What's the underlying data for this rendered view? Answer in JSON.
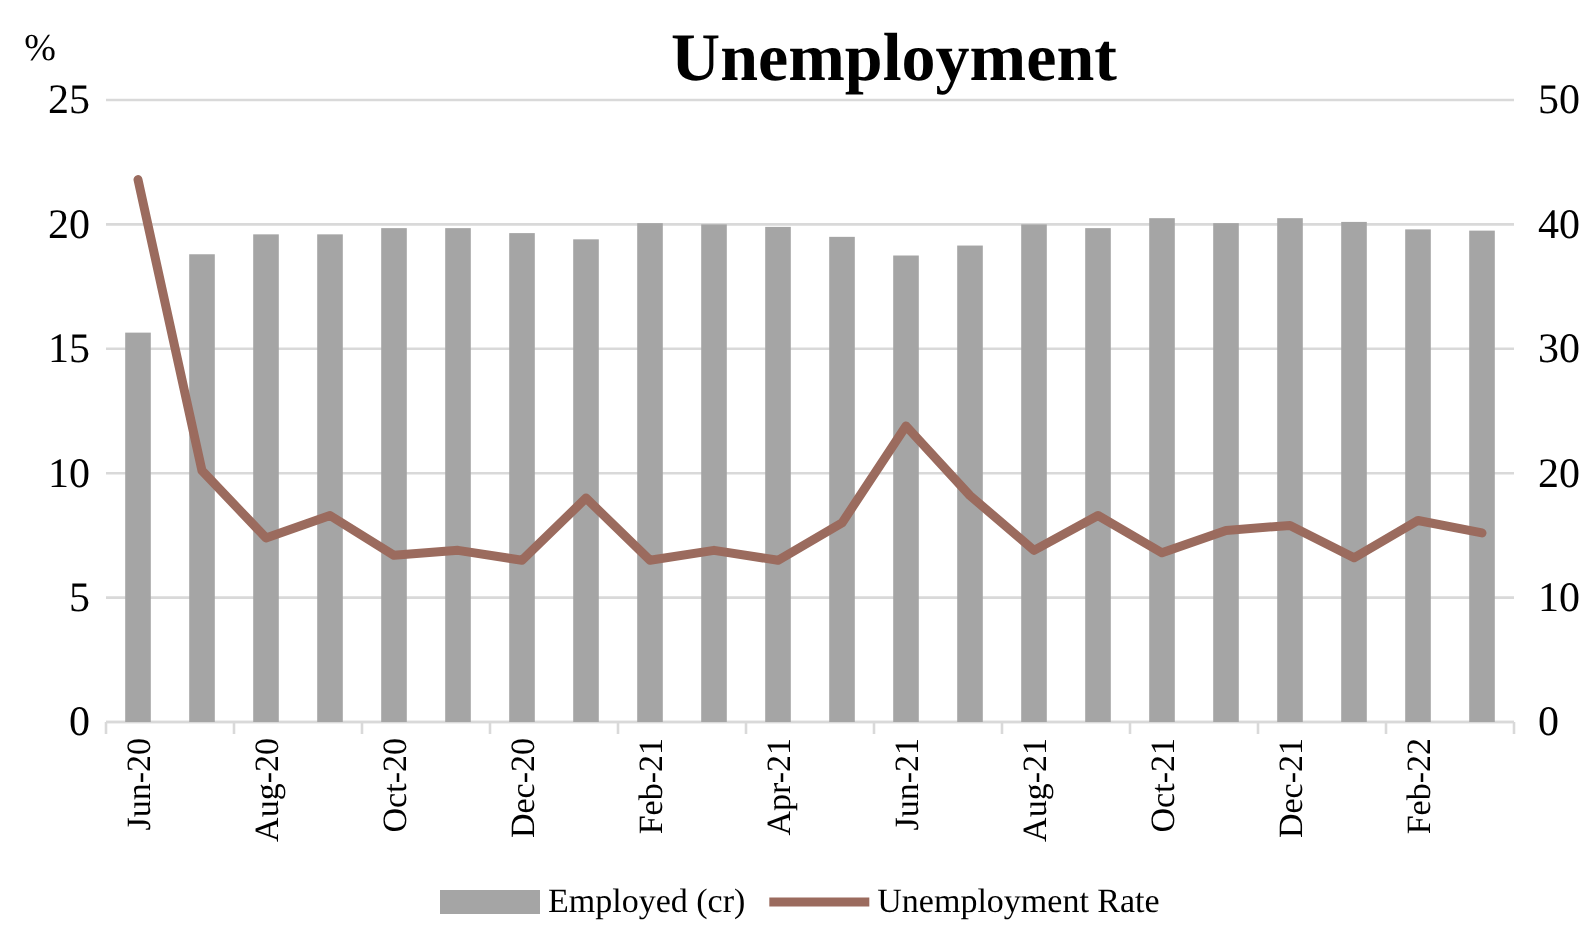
{
  "chart_data": {
    "type": "bar",
    "title": "Unemployment",
    "ylabel": "%",
    "categories": [
      "Jun-20",
      null,
      "Aug-20",
      null,
      "Oct-20",
      null,
      "Dec-20",
      null,
      "Feb-21",
      null,
      "Apr-21",
      null,
      "Jun-21",
      null,
      "Aug-21",
      null,
      "Oct-21",
      null,
      "Dec-21",
      null,
      "Feb-22",
      null
    ],
    "series": [
      {
        "name": "Employed (cr)",
        "axis": "y2",
        "color": "#a5a5a5",
        "values": [
          31.3,
          37.6,
          39.2,
          39.2,
          39.7,
          39.7,
          39.3,
          38.8,
          40.1,
          40.0,
          39.8,
          39.0,
          37.5,
          38.3,
          40.0,
          39.7,
          40.5,
          40.1,
          40.5,
          40.2,
          39.6,
          39.5
        ]
      },
      {
        "name": "Unemployment Rate",
        "type": "line",
        "color": "#9b6b5e",
        "values": [
          21.8,
          10.1,
          7.4,
          8.3,
          6.7,
          6.9,
          6.5,
          9.0,
          6.5,
          6.9,
          6.5,
          8.0,
          11.9,
          9.1,
          6.9,
          8.3,
          6.8,
          7.7,
          7.9,
          6.6,
          8.1,
          7.6
        ]
      }
    ],
    "ylim": [
      0,
      25
    ],
    "yticks": [
      0,
      5,
      10,
      15,
      20,
      25
    ],
    "y2lim": [
      0,
      50
    ],
    "y2ticks": [
      0,
      10,
      20,
      30,
      40,
      50
    ],
    "grid": "y",
    "legend": "bottom",
    "line_style": "solid",
    "marker": "none"
  }
}
